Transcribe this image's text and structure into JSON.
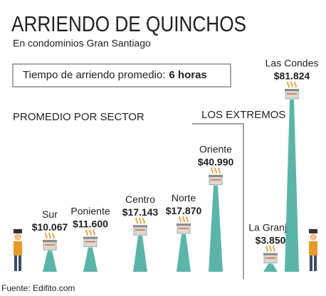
{
  "chart_data": {
    "type": "bar",
    "title": "ARRIENDO DE QUINCHOS",
    "subtitle": "En condominios Gran Santiago",
    "highlight": {
      "label": "Tiempo de arriendo promedio:",
      "value": "6 horas"
    },
    "section_labels": [
      "PROMEDIO POR SECTOR",
      "LOS EXTREMOS"
    ],
    "categories": [
      "Sur",
      "Poniente",
      "Centro",
      "Norte",
      "Oriente",
      "La Granja",
      "Las Condes"
    ],
    "values": [
      10067,
      11600,
      17143,
      17870,
      40990,
      3850,
      81824
    ],
    "value_labels": [
      "$10.067",
      "$11.600",
      "$17.143",
      "$17.870",
      "$40.990",
      "$3.850",
      "$81.824"
    ],
    "color": "#5ab5a8",
    "source": "Fuente: Edifito.com"
  }
}
